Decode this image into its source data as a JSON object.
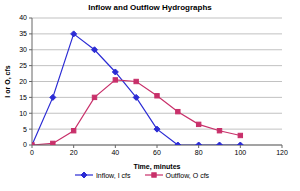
{
  "chart_data": {
    "type": "line",
    "title": "Inflow and Outflow Hydrographs",
    "x_label": "Time, minutes",
    "y_label": "I or O, cfs",
    "x": [
      0,
      10,
      20,
      30,
      40,
      50,
      60,
      70,
      80,
      90,
      100
    ],
    "series": [
      {
        "name": "Inflow, I cfs",
        "color": "#2b2bd4",
        "marker": "diamond",
        "values": [
          0,
          15,
          35,
          30,
          23,
          15,
          5,
          0,
          0,
          0,
          0
        ]
      },
      {
        "name": "Outflow, O cfs",
        "color": "#c8306a",
        "marker": "square",
        "values": [
          0,
          0.5,
          4.5,
          15,
          20.5,
          20,
          15.5,
          10.5,
          6.5,
          4.5,
          3
        ]
      }
    ],
    "xlim": [
      0,
      120
    ],
    "xticks": [
      0,
      20,
      40,
      60,
      80,
      100,
      120
    ],
    "ylim": [
      0,
      40
    ],
    "yticks": [
      0,
      5,
      10,
      15,
      20,
      25,
      30,
      35,
      40
    ],
    "grid": true,
    "legend": "bottom"
  }
}
